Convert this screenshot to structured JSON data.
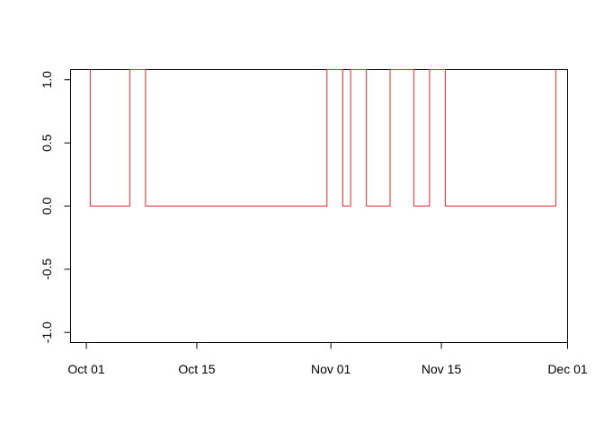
{
  "chart_data": {
    "type": "line",
    "x_axis": {
      "type": "date",
      "range": [
        "2023-09-29",
        "2023-12-01"
      ],
      "ticks": [
        {
          "value": "2023-10-01",
          "label": "Oct 01"
        },
        {
          "value": "2023-10-15",
          "label": "Oct 15"
        },
        {
          "value": "2023-11-01",
          "label": "Nov 01"
        },
        {
          "value": "2023-11-15",
          "label": "Nov 15"
        },
        {
          "value": "2023-12-01",
          "label": "Dec 01"
        }
      ]
    },
    "y_axis": {
      "range": [
        -1.08,
        1.08
      ],
      "ticks": [
        {
          "value": -1.0,
          "label": "-1.0"
        },
        {
          "value": -0.5,
          "label": "-0.5"
        },
        {
          "value": 0.0,
          "label": "0.0"
        },
        {
          "value": 0.5,
          "label": "0.5"
        },
        {
          "value": 1.0,
          "label": "1.0"
        }
      ]
    },
    "grid": false,
    "legend": "none",
    "series": [
      {
        "color": "#e8262a",
        "step": true,
        "points": [
          {
            "x": "2023-10-01T12:00",
            "y": 1.08
          },
          {
            "x": "2023-10-01T12:00",
            "y": 0
          },
          {
            "x": "2023-10-06T12:00",
            "y": 0
          },
          {
            "x": "2023-10-06T12:00",
            "y": 1.08
          },
          {
            "x": "2023-10-08T12:00",
            "y": 1.08
          },
          {
            "x": "2023-10-08T12:00",
            "y": 0
          },
          {
            "x": "2023-10-31T12:00",
            "y": 0
          },
          {
            "x": "2023-10-31T12:00",
            "y": 1.08
          },
          {
            "x": "2023-11-02T12:00",
            "y": 1.08
          },
          {
            "x": "2023-11-02T12:00",
            "y": 0.82
          },
          {
            "x": "2023-11-02T12:00",
            "y": 0
          },
          {
            "x": "2023-11-03T12:00",
            "y": 0
          },
          {
            "x": "2023-11-03T12:00",
            "y": 0.82
          },
          {
            "x": "2023-11-03T12:00",
            "y": 1.08
          },
          {
            "x": "2023-11-05T12:00",
            "y": 1.08
          },
          {
            "x": "2023-11-05T12:00",
            "y": 0
          },
          {
            "x": "2023-11-08T12:00",
            "y": 0
          },
          {
            "x": "2023-11-08T12:00",
            "y": 1.08
          },
          {
            "x": "2023-11-11T12:00",
            "y": 1.08
          },
          {
            "x": "2023-11-11T12:00",
            "y": 0.82
          },
          {
            "x": "2023-11-11T12:00",
            "y": 0
          },
          {
            "x": "2023-11-13T12:00",
            "y": 0
          },
          {
            "x": "2023-11-13T12:00",
            "y": 1.08
          },
          {
            "x": "2023-11-15T12:00",
            "y": 1.08
          },
          {
            "x": "2023-11-15T12:00",
            "y": 0.82
          },
          {
            "x": "2023-11-15T12:00",
            "y": 0
          },
          {
            "x": "2023-11-29T12:00",
            "y": 0
          },
          {
            "x": "2023-11-29T12:00",
            "y": 0.82
          },
          {
            "x": "2023-11-29T12:00",
            "y": 1.08
          }
        ]
      }
    ]
  }
}
